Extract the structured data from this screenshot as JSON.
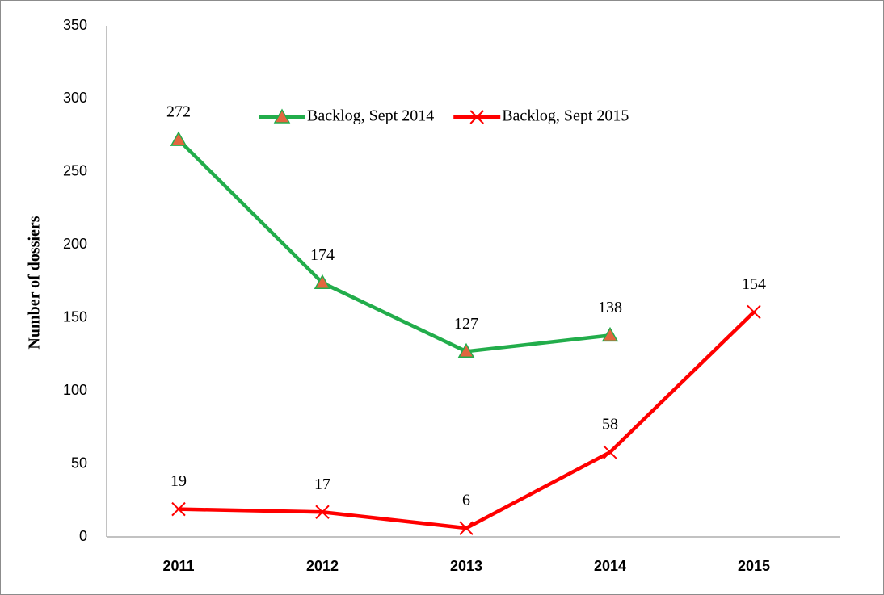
{
  "chart_data": {
    "type": "line",
    "y_label": "Number of dossiers",
    "categories": [
      "2011",
      "2012",
      "2013",
      "2014",
      "2015"
    ],
    "series": [
      {
        "name": "Backlog, Sept 2014",
        "color": "#22ad4b",
        "marker": "triangle",
        "marker_color": "#e2663f",
        "values": [
          272,
          174,
          127,
          138,
          null
        ]
      },
      {
        "name": "Backlog, Sept 2015",
        "color": "#ff0000",
        "marker": "x",
        "values": [
          19,
          17,
          6,
          58,
          154
        ]
      }
    ],
    "ylim": [
      0,
      350
    ],
    "yticks": [
      0,
      50,
      100,
      150,
      200,
      250,
      300,
      350
    ],
    "grid": false,
    "legend": "top",
    "data_labels": true
  }
}
